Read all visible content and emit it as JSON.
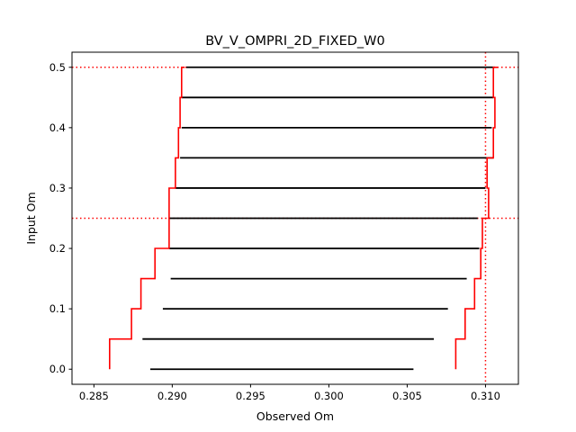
{
  "chart_data": {
    "type": "line",
    "title": "BV_V_OMPRI_2D_FIXED_W0",
    "xlabel": "Observed Om",
    "ylabel": "Input Om",
    "xlim": [
      0.2836,
      0.3121
    ],
    "ylim": [
      -0.025,
      0.525
    ],
    "x_ticks": [
      0.285,
      0.29,
      0.295,
      0.3,
      0.305,
      0.31
    ],
    "x_tick_labels": [
      "0.285",
      "0.290",
      "0.295",
      "0.300",
      "0.305",
      "0.310"
    ],
    "y_ticks": [
      0.0,
      0.1,
      0.2,
      0.3,
      0.4,
      0.5
    ],
    "y_tick_labels": [
      "0.0",
      "0.1",
      "0.2",
      "0.3",
      "0.4",
      "0.5"
    ],
    "grid": false,
    "legend": "none",
    "reference_lines": {
      "vertical_x": 0.31,
      "horizontal_y": [
        0.25,
        0.5
      ],
      "color": "#ff0000",
      "style": "dotted"
    },
    "input_levels": [
      0.0,
      0.05,
      0.1,
      0.15,
      0.2,
      0.25,
      0.3,
      0.35,
      0.4,
      0.45,
      0.5
    ],
    "bounds_68": {
      "lower": [
        0.2886,
        0.2881,
        0.2894,
        0.2899,
        0.2898,
        0.2898,
        0.2902,
        0.2905,
        0.2906,
        0.2906,
        0.2909
      ],
      "upper": [
        0.3054,
        0.3067,
        0.3076,
        0.3088,
        0.3096,
        0.3095,
        0.31,
        0.3105,
        0.3104,
        0.3105,
        0.3106
      ],
      "color": "#000000"
    },
    "bounds_95": {
      "lower": [
        0.286,
        0.2874,
        0.288,
        0.2889,
        0.2898,
        0.2898,
        0.2902,
        0.2904,
        0.2905,
        0.2906,
        0.2908
      ],
      "upper": [
        0.3081,
        0.3087,
        0.3093,
        0.3097,
        0.3098,
        0.3102,
        0.3101,
        0.3105,
        0.3106,
        0.3105,
        0.3108
      ],
      "color": "#ff0000"
    }
  }
}
